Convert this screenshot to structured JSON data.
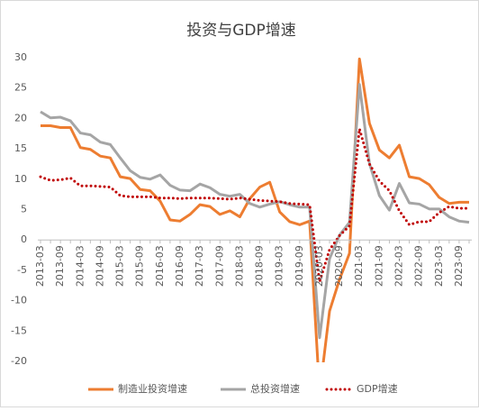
{
  "chart_data": {
    "type": "line",
    "title": "投资与GDP增速",
    "categories": [
      "2013-03",
      null,
      "2013-09",
      null,
      "2014-03",
      null,
      "2014-09",
      null,
      "2015-03",
      null,
      "2015-09",
      null,
      "2016-03",
      null,
      "2016-09",
      null,
      "2017-03",
      null,
      "2017-09",
      null,
      "2018-03",
      null,
      "2018-09",
      null,
      "2019-03",
      null,
      "2019-09",
      null,
      "2020-03",
      null,
      "2020-09",
      null,
      "2021-03",
      null,
      "2021-09",
      null,
      "2022-03",
      null,
      "2022-09",
      null,
      "2023-03",
      null,
      "2023-09",
      null
    ],
    "series": [
      {
        "name": "制造业投资增速",
        "color": "#ed7d31",
        "style": "solid",
        "values": [
          18.8,
          18.8,
          18.5,
          18.5,
          15.2,
          14.9,
          13.8,
          13.5,
          10.4,
          10.1,
          8.3,
          8.1,
          6.4,
          3.3,
          3.1,
          4.2,
          5.8,
          5.5,
          4.2,
          4.8,
          3.8,
          6.8,
          8.7,
          9.5,
          4.6,
          3.0,
          2.5,
          3.1,
          -25.2,
          -11.7,
          -6.5,
          -2.2,
          29.8,
          19.2,
          14.8,
          13.5,
          15.6,
          10.4,
          10.1,
          9.1,
          7.0,
          6.0,
          6.2,
          6.2
        ]
      },
      {
        "name": "总投资增速",
        "color": "#a5a5a5",
        "style": "solid",
        "values": [
          21.1,
          20.1,
          20.2,
          19.6,
          17.6,
          17.3,
          16.1,
          15.7,
          13.5,
          11.4,
          10.3,
          10.0,
          10.7,
          9.0,
          8.2,
          8.1,
          9.2,
          8.6,
          7.5,
          7.2,
          7.5,
          6.0,
          5.4,
          5.9,
          6.3,
          5.8,
          5.4,
          5.4,
          -16.1,
          -3.1,
          0.8,
          2.9,
          25.6,
          12.6,
          7.3,
          4.9,
          9.3,
          6.1,
          5.9,
          5.1,
          5.1,
          3.8,
          3.1,
          2.9
        ]
      },
      {
        "name": "GDP增速",
        "color": "#c00000",
        "style": "dotted",
        "values": [
          10.4,
          9.8,
          9.9,
          10.2,
          8.9,
          8.9,
          8.8,
          8.7,
          7.3,
          7.1,
          7.1,
          7.1,
          6.9,
          6.9,
          6.8,
          6.9,
          6.9,
          6.9,
          6.8,
          6.7,
          6.9,
          6.7,
          6.5,
          6.4,
          6.3,
          6.0,
          5.9,
          5.8,
          -6.9,
          -1.6,
          0.7,
          2.3,
          18.3,
          12.5,
          9.7,
          8.1,
          4.8,
          2.5,
          3.0,
          3.0,
          4.5,
          5.5,
          5.2,
          5.2
        ]
      }
    ],
    "ylim": [
      -20,
      30
    ],
    "yticks": [
      -20,
      -15,
      -10,
      -5,
      0,
      5,
      10,
      15,
      20,
      25,
      30
    ],
    "grid": false,
    "legend": "bottom"
  }
}
